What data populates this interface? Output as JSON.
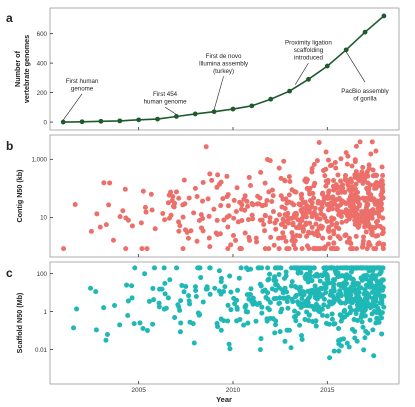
{
  "colors": {
    "line": "#1f5a2e",
    "contig": "#ec6f6a",
    "scaffold": "#1fb8b6",
    "axis": "#333333",
    "panel_border": "#9a9a9a"
  },
  "xaxis": {
    "label": "Year",
    "range": [
      2000.3,
      2018.8
    ],
    "ticks": [
      "2005",
      "2010",
      "2015"
    ],
    "tick_values": [
      2005,
      2010,
      2015
    ]
  },
  "chart_data": [
    {
      "panel": "a",
      "type": "line",
      "ylabel": "Number of vertebrate genomes",
      "ylim": [
        -20,
        740
      ],
      "yticks": [
        0,
        200,
        400,
        600
      ],
      "x": [
        2001,
        2002,
        2003,
        2004,
        2005,
        2006,
        2007,
        2008,
        2009,
        2010,
        2011,
        2012,
        2013,
        2014,
        2015,
        2016,
        2017,
        2018
      ],
      "values": [
        0,
        2,
        5,
        8,
        15,
        20,
        38,
        55,
        70,
        88,
        110,
        155,
        210,
        290,
        380,
        490,
        610,
        720
      ],
      "annotations": [
        {
          "text": "First human genome",
          "lines": [
            "First human",
            "genome"
          ],
          "x": 2001,
          "y": 0,
          "lx": 2002.0,
          "ly": 300
        },
        {
          "text": "First 454 human genome",
          "lines": [
            "First 454",
            "human genome"
          ],
          "x": 2007,
          "y": 38,
          "lx": 2006.4,
          "ly": 210
        },
        {
          "text": "First de novo Illumina assembly (turkey)",
          "lines": [
            "First de novo",
            "Illumina assembly",
            "(turkey)"
          ],
          "x": 2009,
          "y": 70,
          "lx": 2009.5,
          "ly": 470
        },
        {
          "text": "Proximity ligation scaffolding introduced",
          "lines": [
            "Proximity ligation",
            "scaffolding",
            "introduced"
          ],
          "x": 2013.3,
          "y": 240,
          "lx": 2014.0,
          "ly": 560
        },
        {
          "text": "PacBio assembly of gorilla",
          "lines": [
            "PacBio assembly",
            "of gorilla"
          ],
          "x": 2016,
          "y": 490,
          "lx": 2017.0,
          "ly": 230
        }
      ]
    },
    {
      "panel": "b",
      "type": "scatter",
      "ylabel": "Contig N50 (kb)",
      "yscale": "log",
      "ylim": [
        0.6,
        5000
      ],
      "yticks": [
        10,
        1000
      ],
      "ytick_labels": [
        "10",
        "1,000"
      ],
      "series_color": "contig"
    },
    {
      "panel": "c",
      "type": "scatter",
      "ylabel": "Scaffold N50 (Mb)",
      "yscale": "log",
      "ylim": [
        0.00025,
        250
      ],
      "yticks": [
        0.01,
        1,
        100
      ],
      "ytick_labels": [
        "0.01",
        "1",
        "100"
      ],
      "series_color": "scaffold"
    }
  ]
}
